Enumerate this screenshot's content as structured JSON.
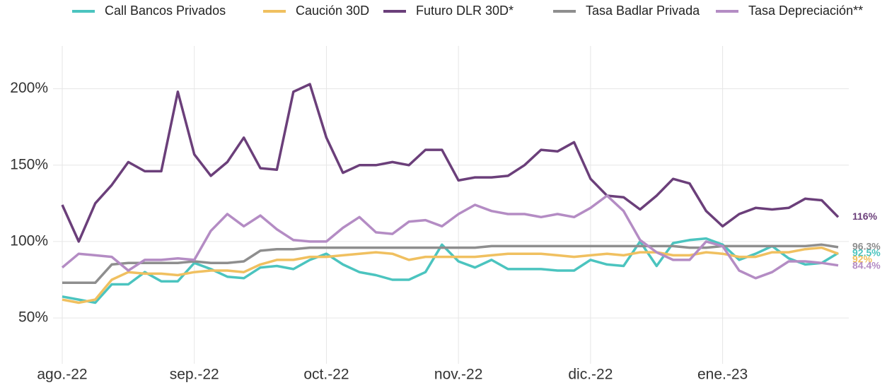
{
  "chart_data": {
    "type": "line",
    "categories": [
      "ago.-22",
      null,
      null,
      null,
      null,
      null,
      null,
      null,
      "sep.-22",
      null,
      null,
      null,
      null,
      null,
      null,
      null,
      "oct.-22",
      null,
      null,
      null,
      null,
      null,
      null,
      null,
      "nov.-22",
      null,
      null,
      null,
      null,
      null,
      null,
      null,
      "dic.-22",
      null,
      null,
      null,
      null,
      null,
      null,
      null,
      "ene.-23",
      null,
      null,
      null,
      null,
      null,
      null,
      null
    ],
    "ylim": [
      20,
      228
    ],
    "yticks": [
      {
        "value": 50,
        "label": "50%"
      },
      {
        "value": 100,
        "label": "100%"
      },
      {
        "value": 150,
        "label": "150%"
      },
      {
        "value": 200,
        "label": "200%"
      }
    ],
    "grid": true,
    "legend": "top",
    "series": [
      {
        "name": "Call Bancos Privados",
        "color": "#4bc4bf",
        "end_label": "92.5%",
        "values": [
          64,
          62,
          60,
          72,
          72,
          80,
          74,
          74,
          86,
          82,
          77,
          76,
          83,
          84,
          82,
          88,
          92,
          85,
          80,
          78,
          75,
          75,
          80,
          98,
          87,
          83,
          88,
          82,
          82,
          82,
          81,
          81,
          88,
          85,
          84,
          100,
          84,
          99,
          101,
          102,
          98,
          88,
          92,
          97,
          89,
          85,
          86,
          92.5
        ]
      },
      {
        "name": "Caución 30D",
        "color": "#f0c060",
        "end_label": "92%",
        "values": [
          62,
          60,
          62,
          75,
          80,
          79,
          79,
          78,
          80,
          81,
          81,
          80,
          85,
          88,
          88,
          90,
          90,
          91,
          92,
          93,
          92,
          88,
          90,
          90,
          90,
          90,
          91,
          92,
          92,
          92,
          91,
          90,
          91,
          92,
          91,
          93,
          93,
          91,
          91,
          93,
          92,
          90,
          90,
          93,
          93,
          95,
          96,
          92
        ]
      },
      {
        "name": "Futuro DLR 30D*",
        "color": "#6b3f7a",
        "end_label": "116%",
        "values": [
          124,
          100,
          125,
          137,
          152,
          146,
          146,
          198,
          157,
          143,
          152,
          168,
          148,
          147,
          198,
          203,
          168,
          145,
          150,
          150,
          152,
          150,
          160,
          160,
          140,
          142,
          142,
          143,
          150,
          160,
          159,
          165,
          141,
          130,
          129,
          121,
          130,
          141,
          138,
          120,
          110,
          118,
          122,
          121,
          122,
          128,
          127,
          116
        ]
      },
      {
        "name": "Tasa Badlar Privada",
        "color": "#8e8e8e",
        "end_label": "96.3%",
        "values": [
          73,
          73,
          73,
          85,
          86,
          86,
          86,
          86,
          87,
          86,
          86,
          87,
          94,
          95,
          95,
          96,
          96,
          96,
          96,
          96,
          96,
          96,
          96,
          96,
          96,
          96,
          97,
          97,
          97,
          97,
          97,
          97,
          97,
          97,
          97,
          97,
          97,
          97,
          96,
          96,
          97,
          97,
          97,
          97,
          97,
          97,
          98,
          96.3
        ]
      },
      {
        "name": "Tasa Depreciación**",
        "color": "#b48cc4",
        "end_label": "84.4%",
        "values": [
          83,
          92,
          91,
          90,
          81,
          88,
          88,
          89,
          88,
          107,
          118,
          110,
          117,
          108,
          101,
          100,
          100,
          109,
          116,
          106,
          105,
          113,
          114,
          110,
          118,
          124,
          120,
          118,
          118,
          116,
          118,
          116,
          122,
          130,
          120,
          101,
          93,
          88,
          88,
          100,
          97,
          81,
          76,
          80,
          87,
          87,
          86,
          84.4
        ]
      }
    ]
  }
}
